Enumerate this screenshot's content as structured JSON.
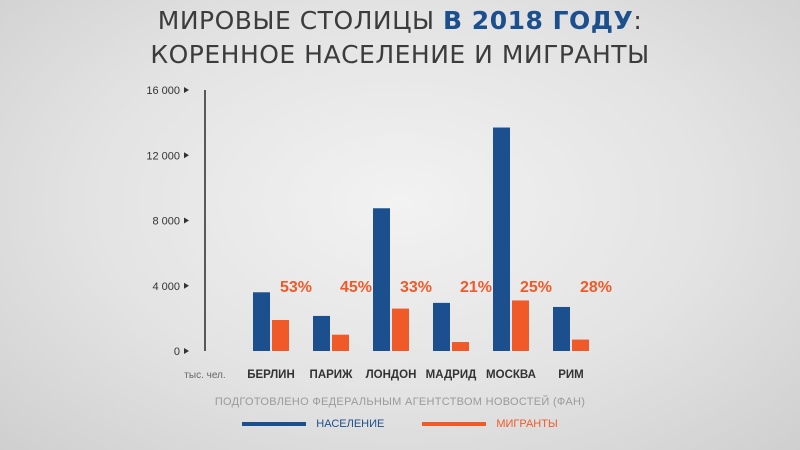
{
  "title": {
    "line1_part1": "МИРОВЫЕ СТОЛИЦЫ ",
    "line1_highlight": "В 2018 ГОДУ",
    "line1_part2": ":",
    "line2": "КОРЕННОЕ НАСЕЛЕНИЕ И МИГРАНТЫ"
  },
  "credit": "ПОДГОТОВЛЕНО ФЕДЕРАЛЬНЫМ АГЕНТСТВОМ НОВОСТЕЙ (ФАН)",
  "colors": {
    "population": "#1c4f8e",
    "migrants": "#f05a28",
    "percent": "#f05a28",
    "axis": "#2a2a2a",
    "title_highlight": "#1c4f8e"
  },
  "chart_data": {
    "type": "bar",
    "unit_label": "тыс. чел.",
    "categories": [
      "БЕРЛИН",
      "ПАРИЖ",
      "ЛОНДОН",
      "МАДРИД",
      "МОСКВА",
      "РИМ"
    ],
    "series": [
      {
        "name": "НАСЕЛЕНИЕ",
        "values": [
          3600,
          2150,
          8750,
          2950,
          13700,
          2700
        ]
      },
      {
        "name": "МИГРАНТЫ",
        "values": [
          1900,
          1000,
          2600,
          550,
          3100,
          700
        ]
      }
    ],
    "percent_labels": [
      "53%",
      "45%",
      "33%",
      "21%",
      "25%",
      "28%"
    ],
    "yticks": [
      {
        "value": 0,
        "label": "0"
      },
      {
        "value": 4000,
        "label": "4 000"
      },
      {
        "value": 8000,
        "label": "8 000"
      },
      {
        "value": 12000,
        "label": "12 000"
      },
      {
        "value": 16000,
        "label": "16 000"
      }
    ],
    "ylim": [
      0,
      16000
    ],
    "grid": false,
    "legend_position": "bottom-center"
  }
}
